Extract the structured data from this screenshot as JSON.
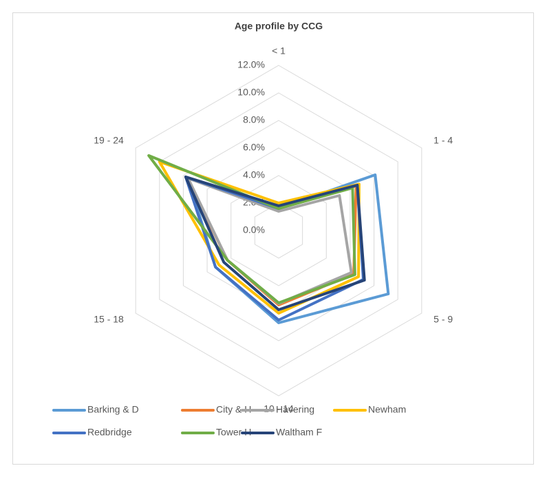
{
  "chart_data": {
    "type": "radar",
    "title": "Age profile by CCG",
    "categories": [
      "< 1",
      "1 - 4",
      "5 - 9",
      "10 - 14",
      "15 - 18",
      "19 - 24"
    ],
    "rlim": [
      0,
      12
    ],
    "rticks": [
      {
        "value": 0,
        "label": "0.0%"
      },
      {
        "value": 2,
        "label": "2.0%"
      },
      {
        "value": 4,
        "label": "4.0%"
      },
      {
        "value": 6,
        "label": "6.0%"
      },
      {
        "value": 8,
        "label": "8.0%"
      },
      {
        "value": 10,
        "label": "10.0%"
      },
      {
        "value": 12,
        "label": "12.0%"
      }
    ],
    "grid": true,
    "legend": "bottom",
    "series": [
      {
        "name": "Barking & D",
        "color": "#5b9bd5",
        "values": [
          1.6,
          8.1,
          9.2,
          6.7,
          5.3,
          7.6
        ]
      },
      {
        "name": "City & H",
        "color": "#ed7d31",
        "values": [
          1.6,
          6.5,
          6.3,
          5.4,
          4.3,
          7.7
        ]
      },
      {
        "name": "Havering",
        "color": "#a5a5a5",
        "values": [
          1.4,
          5.1,
          6.1,
          5.3,
          4.3,
          7.6
        ]
      },
      {
        "name": "Newham",
        "color": "#ffc000",
        "values": [
          2.0,
          6.75,
          6.7,
          6.0,
          5.0,
          10.0
        ]
      },
      {
        "name": "Redbridge",
        "color": "#4472c4",
        "values": [
          1.6,
          6.6,
          7.1,
          6.5,
          5.3,
          7.8
        ]
      },
      {
        "name": "Tower H",
        "color": "#70ad47",
        "values": [
          1.6,
          6.2,
          6.4,
          5.25,
          4.3,
          10.9
        ]
      },
      {
        "name": "Waltham F",
        "color": "#264478",
        "values": [
          1.8,
          6.6,
          7.2,
          5.75,
          4.6,
          7.8
        ]
      }
    ]
  }
}
